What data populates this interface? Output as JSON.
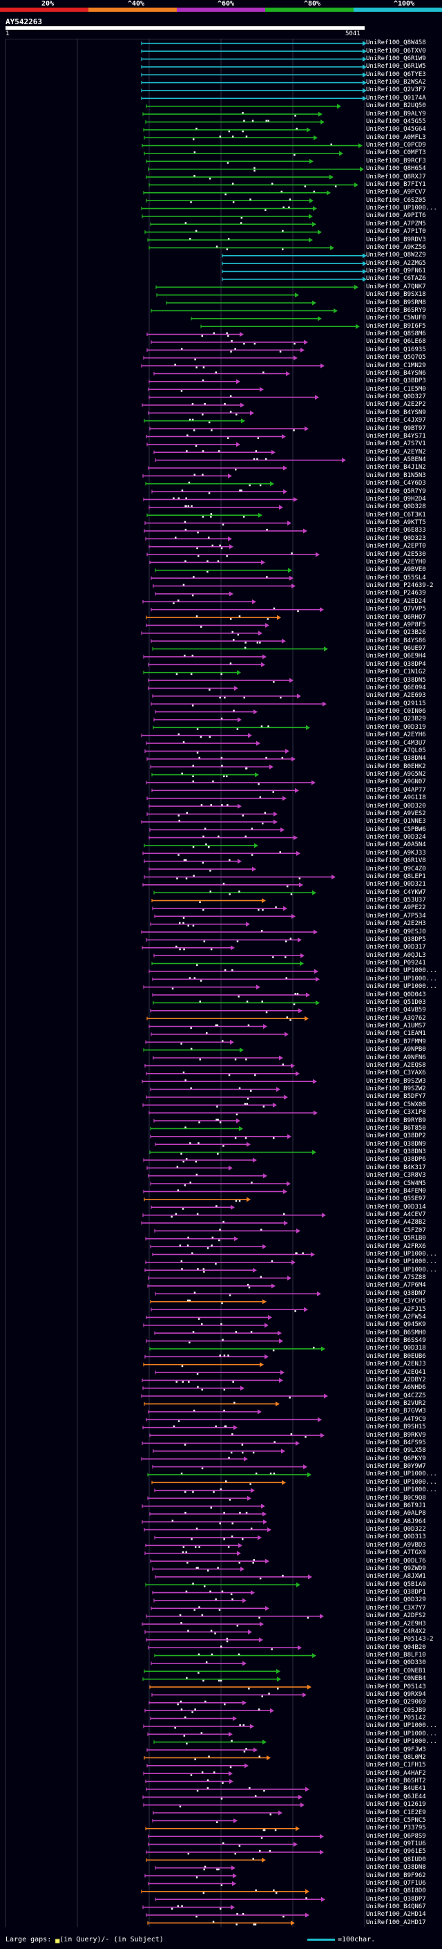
{
  "legend": [
    {
      "label": "20%",
      "color": "#e02020"
    },
    {
      "label": "^40%",
      "color": "#f08020"
    },
    {
      "label": "^60%",
      "color": "#b030c0"
    },
    {
      "label": "^80%",
      "color": "#20b020"
    },
    {
      "label": "^100%",
      "color": "#20c0d0"
    }
  ],
  "query": {
    "id": "AY542263",
    "start": "1",
    "end": "5041",
    "length": 5041
  },
  "colors": {
    "cyan": "#20c0d0",
    "green": "#20b020",
    "magenta": "#c040c0",
    "orange": "#f08020",
    "gap_dot": "#f0f0f0",
    "grid": "#303048"
  },
  "hits": [
    "UniRef100_Q8W458",
    "UniRef100_Q6TXV0",
    "UniRef100_Q6R1W9",
    "UniRef100_Q6R1W5",
    "UniRef100_Q6TYE3",
    "UniRef100_B2WSA2",
    "UniRef100_Q2V3F7",
    "UniRef100_Q0174A",
    "UniRef100_B2UQ50",
    "UniRef100_B9ALY9",
    "UniRef100_Q45G55",
    "UniRef100_Q45G64",
    "UniRef100_A0MFL3",
    "UniRef100_C0PCD9",
    "UniRef100_C0MFT3",
    "UniRef100_B9RCF3",
    "UniRef100_Q8H654",
    "UniRef100_Q8RXJ7",
    "UniRef100_B7FIY1",
    "UniRef100_A9PCV7",
    "UniRef100_C6SZ05",
    "UniRef100_UP1000...",
    "UniRef100_A9PIT6",
    "UniRef100_A7PZM5",
    "UniRef100_A7P1T0",
    "UniRef100_B9RDV3",
    "UniRef100_A9KZ56",
    "UniRef100_Q8W2Z9",
    "UniRef100_A2ZMG5",
    "UniRef100_Q9FN61",
    "UniRef100_C6TAZ6",
    "UniRef100_A7QNK7",
    "UniRef100_B9SX18",
    "UniRef100_B9SRM8",
    "UniRef100_B6SRY9",
    "UniRef100_C5WUF0",
    "UniRef100_B9I6F5",
    "UniRef100_Q8S8M6",
    "UniRef100_Q6LE68",
    "UniRef100_Q16935",
    "UniRef100_Q5Q7Q5",
    "UniRef100_C1MN29",
    "UniRef100_B4YSN6",
    "UniRef100_Q3BDP3",
    "UniRef100_C1E5M0",
    "UniRef100_Q0D327",
    "UniRef100_A2E2P2",
    "UniRef100_B4YSN9",
    "UniRef100_C4JX97",
    "UniRef100_Q9BT97",
    "UniRef100_B4YS71",
    "UniRef100_A7S7V1",
    "UniRef100_A2EYN2",
    "UniRef100_A5BEN4",
    "UniRef100_B4J1N2",
    "UniRef100_B1N5N3",
    "UniRef100_C4Y6D3",
    "UniRef100_Q5R7Y9",
    "UniRef100_Q9H2D4",
    "UniRef100_Q0D328",
    "UniRef100_C6T3K1",
    "UniRef100_A9KTT5",
    "UniRef100_Q6E833",
    "UniRef100_Q0D323",
    "UniRef100_A2EPT0",
    "UniRef100_A2E530",
    "UniRef100_A2EYH0",
    "UniRef100_A9BVE0",
    "UniRef100_Q55SL4",
    "UniRef100_P24639-2",
    "UniRef100_P24639",
    "UniRef100_A2ED24",
    "UniRef100_Q7VVP5",
    "UniRef100_Q6RHQ7",
    "UniRef100_A9P8F5",
    "UniRef100_Q23B26",
    "UniRef100_B4YS86",
    "UniRef100_Q6UE97",
    "UniRef100_Q6E9H4",
    "UniRef100_Q38DP4",
    "UniRef100_C1N1G2",
    "UniRef100_Q38DN5",
    "UniRef100_Q6E094",
    "UniRef100_A2E693",
    "UniRef100_Q29115",
    "UniRef100_C0IN06",
    "UniRef100_Q23B29",
    "UniRef100_Q0D319",
    "UniRef100_A2EYH6",
    "UniRef100_C4M3U7",
    "UniRef100_A7QL05",
    "UniRef100_Q38DN4",
    "UniRef100_B0EHK2",
    "UniRef100_A9G5N2",
    "UniRef100_A9GN07",
    "UniRef100_Q4AP77",
    "UniRef100_A9G1I8",
    "UniRef100_Q0D320",
    "UniRef100_A9VES2",
    "UniRef100_Q1NNE3",
    "UniRef100_C5PBW6",
    "UniRef100_Q0D324",
    "UniRef100_A0A5N4",
    "UniRef100_A9KJ33",
    "UniRef100_Q6R1V8",
    "UniRef100_Q9C4Z0",
    "UniRef100_Q8LEP1",
    "UniRef100_Q0D321",
    "UniRef100_C4YKW7",
    "UniRef100_Q53U37",
    "UniRef100_A9PE22",
    "UniRef100_A7P534",
    "UniRef100_A2E2H3",
    "UniRef100_Q9ESJ0",
    "UniRef100_Q38DP5",
    "UniRef100_Q0D317",
    "UniRef100_A0QJL3",
    "UniRef100_P09241",
    "UniRef100_UP1000...",
    "UniRef100_UP1000...",
    "UniRef100_UP1000...",
    "UniRef100_Q0D043",
    "UniRef100_Q51D03",
    "UniRef100_Q4VB59",
    "UniRef100_A3Q762",
    "UniRef100_A1UMS7",
    "UniRef100_C1EAM1",
    "UniRef100_B7FMM9",
    "UniRef100_A9NPB0",
    "UniRef100_A9NFN6",
    "UniRef100_A2EQS8",
    "UniRef100_C3YAX6",
    "UniRef100_B9SZW3",
    "UniRef100_B9SZW2",
    "UniRef100_B5DFY7",
    "UniRef100_C5WX0B",
    "UniRef100_C3X1P8",
    "UniRef100_B9RYB9",
    "UniRef100_B6T850",
    "UniRef100_Q38DP2",
    "UniRef100_Q38DN9",
    "UniRef100_Q38DN3",
    "UniRef100_Q38DP6",
    "UniRef100_B4K317",
    "UniRef100_C3R8V3",
    "UniRef100_C5W4M5",
    "UniRef100_B4FEM0",
    "UniRef100_Q5SE97",
    "UniRef100_Q0D314",
    "UniRef100_A4CEV7",
    "UniRef100_A4Z8B2",
    "UniRef100_C5FZ07",
    "UniRef100_Q5R1B0",
    "UniRef100_A2FRX6",
    "UniRef100_UP1000...",
    "UniRef100_UP1000...",
    "UniRef100_UP1000...",
    "UniRef100_A7SZ88",
    "UniRef100_A7P6M4",
    "UniRef100_Q38DN7",
    "UniRef100_C3YCH5",
    "UniRef100_A2FJ15",
    "UniRef100_A2FW54",
    "UniRef100_Q945K9",
    "UniRef100_B6SMH0",
    "UniRef100_B6SS49",
    "UniRef100_Q0D318",
    "UniRef100_B0EUB6",
    "UniRef100_A2ENJ3",
    "UniRef100_A2EQ41",
    "UniRef100_A2DBY2",
    "UniRef100_A6NHD6",
    "UniRef100_Q4CZZ5",
    "UniRef100_B2VUR2",
    "UniRef100_B7GVW3",
    "UniRef100_A4T9C9",
    "UniRef100_B9SH15",
    "UniRef100_B9RKV9",
    "UniRef100_B4FS95",
    "UniRef100_Q9LX58",
    "UniRef100_Q6PKY9",
    "UniRef100_B0Y9W7",
    "UniRef100_UP1000...",
    "UniRef100_UP1000...",
    "UniRef100_UP1000...",
    "UniRef100_B0C9Q8",
    "UniRef100_B6T9J1",
    "UniRef100_A0ALP8",
    "UniRef100_A8J964",
    "UniRef100_Q0D322",
    "UniRef100_Q0D313",
    "UniRef100_A9VBD3",
    "UniRef100_A7TGX9",
    "UniRef100_Q0DL76",
    "UniRef100_Q9ZWD9",
    "UniRef100_A8JXW1",
    "UniRef100_Q5B1A9",
    "UniRef100_Q38DP1",
    "UniRef100_Q0D329",
    "UniRef100_C3X7Y7",
    "UniRef100_A2DFS2",
    "UniRef100_A2E9H3",
    "UniRef100_C4R4X2",
    "UniRef100_P05143-2",
    "UniRef100_Q04B20",
    "UniRef100_B8LF10",
    "UniRef100_Q0D330",
    "UniRef100_C0NEB1",
    "UniRef100_C0NEB4",
    "UniRef100_P05143",
    "UniRef100_Q9RX94",
    "UniRef100_Q29069",
    "UniRef100_C0SJB9",
    "UniRef100_P05142",
    "UniRef100_UP1000...",
    "UniRef100_UP1000...",
    "UniRef100_UP1000...",
    "UniRef100_Q9FJW3",
    "UniRef100_Q8L0M2",
    "UniRef100_C1FH15",
    "UniRef100_A4HAF2",
    "UniRef100_B6SHT2",
    "UniRef100_B4UE41",
    "UniRef100_Q6JE44",
    "UniRef100_Q12619",
    "UniRef100_C1E2E9",
    "UniRef100_C5PNC5",
    "UniRef100_P33795",
    "UniRef100_Q6P8S9",
    "UniRef100_Q9T1U6",
    "UniRef100_Q961E5",
    "UniRef100_Q8IUD0",
    "UniRef100_Q38DN8",
    "UniRef100_B9F962",
    "UniRef100_Q7F1U6",
    "UniRef100_Q8I8D0",
    "UniRef100_Q38DP7",
    "UniRef100_B4QN67",
    "UniRef100_A2HD14",
    "UniRef100_A2HD17"
  ],
  "footer": {
    "gap_label": "Large gaps: ",
    "gap_mark": "▄",
    "gap_text": "(in Query)/- (in Subject)",
    "scale_text": "=100char."
  }
}
